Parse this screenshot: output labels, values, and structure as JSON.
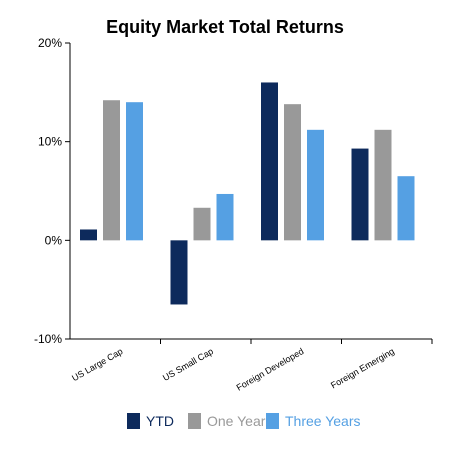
{
  "chart_data": {
    "type": "bar",
    "title": "Equity Market Total Returns",
    "xlabel": "",
    "ylabel": "",
    "categories": [
      "US Large Cap",
      "US Small Cap",
      "Foreign Developed",
      "Foreign Emerging"
    ],
    "series": [
      {
        "name": "YTD",
        "color": "#0d2a5c",
        "values": [
          1.1,
          -6.5,
          16.0,
          9.3
        ]
      },
      {
        "name": "One Year",
        "color": "#999999",
        "values": [
          14.2,
          3.3,
          13.8,
          11.2
        ]
      },
      {
        "name": "Three Years",
        "color": "#55a0e3",
        "values": [
          14.0,
          4.7,
          11.2,
          6.5
        ]
      }
    ],
    "ylim": [
      -10,
      20
    ],
    "yticks": [
      "20%",
      "10%",
      "0%",
      "-10%"
    ],
    "ytick_values": [
      20,
      10,
      0,
      -10
    ],
    "grid": false,
    "legend_position": "bottom"
  }
}
